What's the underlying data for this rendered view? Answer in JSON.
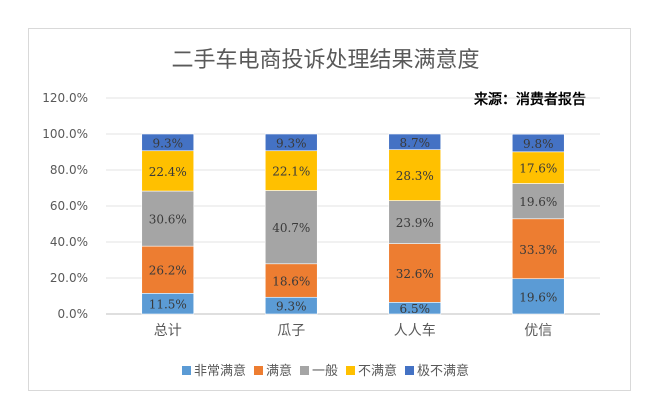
{
  "chart_data": {
    "type": "bar",
    "stacked": true,
    "title": "二手车电商投诉处理结果满意度",
    "source_note": "来源：消费者报告",
    "categories": [
      "总计",
      "瓜子",
      "人人车",
      "优信"
    ],
    "y_ticks": [
      "0.0%",
      "20.0%",
      "40.0%",
      "60.0%",
      "80.0%",
      "100.0%",
      "120.0%"
    ],
    "ylim": [
      0,
      120
    ],
    "grid": true,
    "legend_position": "bottom",
    "series": [
      {
        "name": "非常满意",
        "color": "#5b9bd5",
        "values": [
          11.5,
          9.3,
          6.5,
          19.6
        ],
        "labels": [
          "11.5%",
          "9.3%",
          "6.5%",
          "19.6%"
        ]
      },
      {
        "name": "满意",
        "color": "#ed7d31",
        "values": [
          26.2,
          18.6,
          32.6,
          33.3
        ],
        "labels": [
          "26.2%",
          "18.6%",
          "32.6%",
          "33.3%"
        ]
      },
      {
        "name": "一般",
        "color": "#a5a5a5",
        "values": [
          30.6,
          40.7,
          23.9,
          19.6
        ],
        "labels": [
          "30.6%",
          "40.7%",
          "23.9%",
          "19.6%"
        ]
      },
      {
        "name": "不满意",
        "color": "#ffc000",
        "values": [
          22.4,
          22.1,
          28.3,
          17.6
        ],
        "labels": [
          "22.4%",
          "22.1%",
          "28.3%",
          "17.6%"
        ]
      },
      {
        "name": "极不满意",
        "color": "#4472c4",
        "values": [
          9.3,
          9.3,
          8.7,
          9.8
        ],
        "labels": [
          "9.3%",
          "9.3%",
          "8.7%",
          "9.8%"
        ]
      }
    ]
  }
}
